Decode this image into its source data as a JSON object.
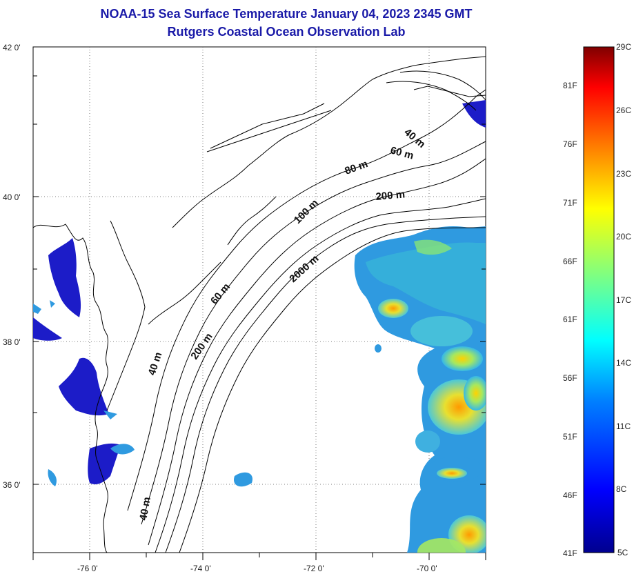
{
  "title": {
    "line1": "NOAA-15 Sea Surface Temperature January 04, 2023 2345 GMT",
    "line2": "Rutgers Coastal Ocean Observation Lab"
  },
  "map": {
    "lat_ticks": [
      "42 0'",
      "40 0'",
      "38 0'",
      "36 0'"
    ],
    "lon_ticks": [
      "-76 0'",
      "-74 0'",
      "-72 0'",
      "-70 0'"
    ],
    "contour_labels": [
      "40 m",
      "60 m",
      "80 m",
      "200 m",
      "100 m",
      "2000 m",
      "60 m",
      "200 m",
      "40 m",
      "40 m"
    ]
  },
  "colorbar": {
    "celsius_labels": [
      "29C",
      "26C",
      "23C",
      "20C",
      "17C",
      "14C",
      "11C",
      "8C",
      "5C"
    ],
    "fahrenheit_labels": [
      "81F",
      "76F",
      "71F",
      "66F",
      "61F",
      "56F",
      "51F",
      "46F",
      "41F"
    ],
    "colors": [
      "#00008f",
      "#0000ff",
      "#0080ff",
      "#00ffff",
      "#80ff80",
      "#ffff00",
      "#ff8000",
      "#ff0000",
      "#800000"
    ]
  },
  "colors": {
    "title": "#1a1aa8",
    "coast": "#000000",
    "cold_water": "#1c1cc8",
    "ocean_mid": "#2f9ae0"
  }
}
